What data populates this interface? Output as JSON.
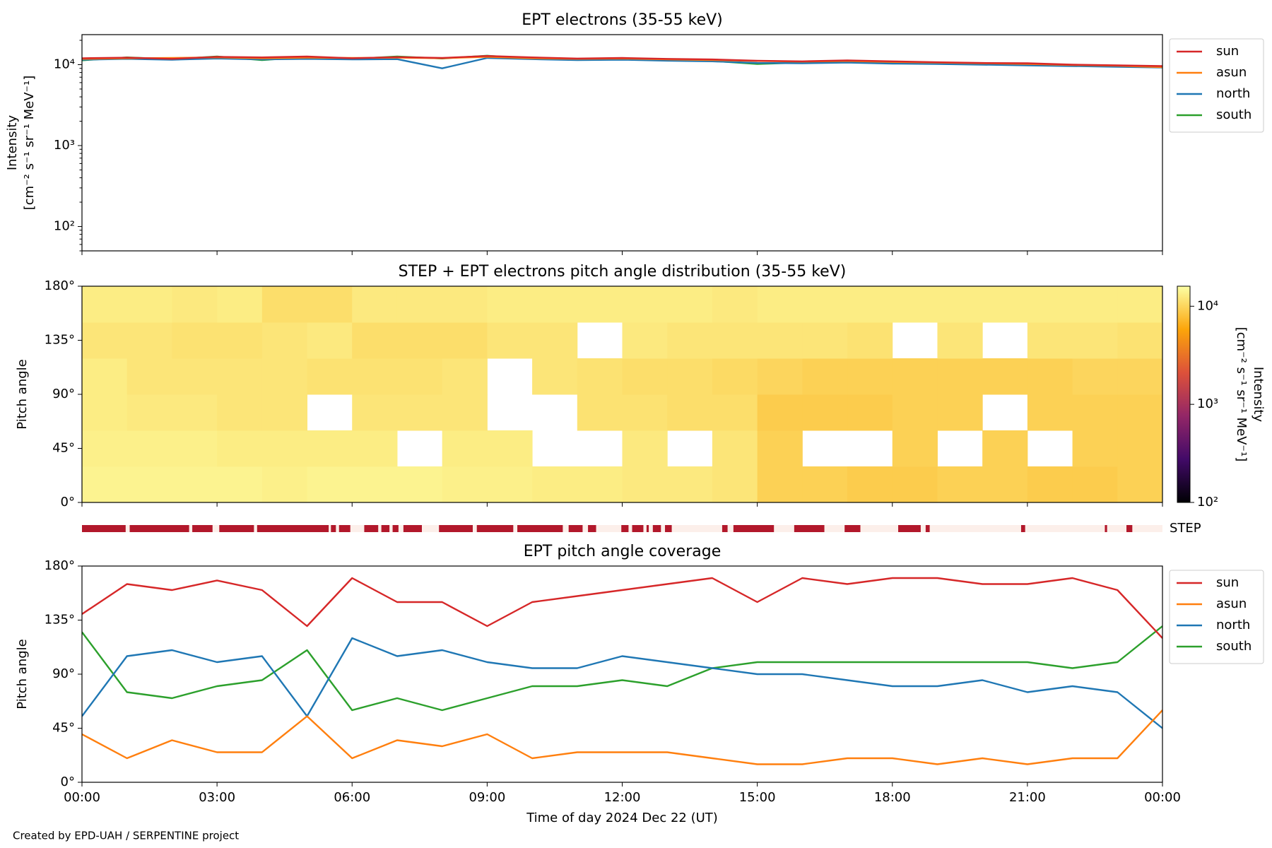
{
  "chart_data": [
    {
      "type": "line",
      "title": "EPT electrons (35-55 keV)",
      "ylabel": [
        "Intensity",
        "[cm⁻² s⁻¹ sr⁻¹ MeV⁻¹]"
      ],
      "log": true,
      "legend": "outside right",
      "x": [
        0,
        1,
        2,
        3,
        4,
        5,
        6,
        7,
        8,
        9,
        10,
        11,
        12,
        13,
        14,
        15,
        16,
        17,
        18,
        19,
        20,
        21,
        22,
        23,
        24
      ],
      "xlim": [
        0,
        24
      ],
      "xticks": [
        0,
        3,
        6,
        9,
        12,
        15,
        18,
        21,
        24
      ],
      "ylim": [
        50,
        23500
      ],
      "yticks": [
        {
          "value": 100,
          "label": "10²"
        },
        {
          "value": 1000,
          "label": "10³"
        },
        {
          "value": 10000,
          "label": "10⁴"
        }
      ],
      "series": [
        {
          "name": "sun",
          "color": "#d62728",
          "values": [
            12000,
            12200,
            11800,
            12500,
            12300,
            12600,
            12000,
            12400,
            12100,
            12800,
            12300,
            11900,
            12100,
            11800,
            11600,
            11200,
            11000,
            11300,
            11000,
            10700,
            10500,
            10400,
            10000,
            9800,
            9600
          ]
        },
        {
          "name": "asun",
          "color": "#ff7f0e",
          "values": [
            11800,
            12000,
            12100,
            12300,
            12000,
            12200,
            12100,
            12200,
            12000,
            12500,
            12000,
            11800,
            11900,
            11600,
            11400,
            11100,
            10900,
            11100,
            10800,
            10600,
            10400,
            10200,
            9900,
            9700,
            9300
          ]
        },
        {
          "name": "north",
          "color": "#1f77b4",
          "values": [
            11500,
            11800,
            11500,
            11900,
            11600,
            11800,
            11600,
            11700,
            9000,
            12100,
            11700,
            11400,
            11500,
            11200,
            11000,
            10500,
            10400,
            10600,
            10300,
            10200,
            10000,
            9800,
            9600,
            9400,
            9200
          ]
        },
        {
          "name": "south",
          "color": "#2ca02c",
          "values": [
            11300,
            12300,
            11700,
            12600,
            11400,
            12400,
            11800,
            12600,
            11900,
            12900,
            11800,
            11600,
            11700,
            11300,
            11100,
            10200,
            10600,
            10900,
            10500,
            10300,
            10100,
            10000,
            9700,
            9500,
            9400
          ]
        }
      ]
    },
    {
      "type": "heatmap",
      "title": "STEP + EPT electrons pitch angle distribution (35-55 keV)",
      "ylabel": "Pitch angle",
      "xbins": [
        0,
        1,
        2,
        3,
        4,
        5,
        6,
        7,
        8,
        9,
        10,
        11,
        12,
        13,
        14,
        15,
        16,
        17,
        18,
        19,
        20,
        21,
        22,
        23,
        24
      ],
      "ybins": [
        0,
        30,
        60,
        90,
        120,
        150,
        180
      ],
      "xlim": [
        0,
        24
      ],
      "xticks": [
        0,
        3,
        6,
        9,
        12,
        15,
        18,
        21,
        24
      ],
      "ylim": [
        0,
        180
      ],
      "yticks": [
        {
          "value": 0,
          "label": "0°"
        },
        {
          "value": 45,
          "label": "45°"
        },
        {
          "value": 90,
          "label": "90°"
        },
        {
          "value": 135,
          "label": "135°"
        },
        {
          "value": 180,
          "label": "180°"
        }
      ],
      "z": [
        [
          14000,
          14000,
          14000,
          14000,
          13500,
          14000,
          14000,
          14000,
          13500,
          13500,
          13000,
          13000,
          12500,
          12500,
          12000,
          9500,
          9500,
          9000,
          9000,
          9500,
          9500,
          9000,
          9000,
          9500
        ],
        [
          13500,
          13500,
          13500,
          13000,
          13000,
          13000,
          13000,
          null,
          13000,
          13000,
          null,
          null,
          12500,
          null,
          12000,
          9500,
          null,
          null,
          9500,
          null,
          9500,
          null,
          9500,
          9500
        ],
        [
          13000,
          12500,
          12500,
          12000,
          12000,
          null,
          12000,
          12000,
          12000,
          null,
          null,
          11500,
          11500,
          11000,
          11000,
          9000,
          9000,
          9000,
          9500,
          9500,
          null,
          9500,
          9500,
          9500
        ],
        [
          13000,
          12000,
          12000,
          12000,
          12000,
          11500,
          11500,
          11500,
          12000,
          null,
          12000,
          11500,
          11000,
          11000,
          10500,
          10000,
          9500,
          9500,
          9500,
          9500,
          9500,
          9500,
          10000,
          10000
        ],
        [
          12000,
          12000,
          11500,
          11500,
          12000,
          12500,
          11000,
          11000,
          11000,
          12000,
          12000,
          null,
          12500,
          12000,
          12000,
          12000,
          12000,
          11500,
          null,
          12000,
          null,
          12000,
          12000,
          11500
        ],
        [
          13000,
          13000,
          12500,
          13000,
          11000,
          11000,
          12500,
          12500,
          12500,
          13000,
          13000,
          13000,
          13000,
          13000,
          12500,
          13000,
          13000,
          13000,
          13000,
          13000,
          13000,
          13000,
          13000,
          13000
        ]
      ],
      "clim": [
        100,
        16000
      ],
      "clog": true,
      "colormap": [
        "#000004",
        "#420a68",
        "#932667",
        "#dd513a",
        "#fca50a",
        "#fcffa4"
      ],
      "cticks": [
        {
          "value": 100,
          "label": "10²"
        },
        {
          "value": 1000,
          "label": "10³"
        },
        {
          "value": 10000,
          "label": "10⁴"
        }
      ],
      "clabel": [
        "Intensity",
        "[cm⁻² s⁻¹ sr⁻¹ MeV⁻¹]"
      ],
      "step": {
        "label": "STEP",
        "color": "#b2182b",
        "background": "#fcefea",
        "intervals": [
          [
            0,
            0.97
          ],
          [
            1.06,
            2.38
          ],
          [
            2.45,
            2.9
          ],
          [
            3.05,
            3.82
          ],
          [
            3.89,
            5.48
          ],
          [
            5.53,
            5.64
          ],
          [
            5.71,
            5.96
          ],
          [
            6.27,
            6.58
          ],
          [
            6.65,
            6.83
          ],
          [
            6.9,
            7.03
          ],
          [
            7.14,
            7.55
          ],
          [
            7.93,
            8.68
          ],
          [
            8.77,
            9.58
          ],
          [
            9.67,
            10.68
          ],
          [
            10.81,
            11.12
          ],
          [
            11.24,
            11.42
          ],
          [
            11.98,
            12.14
          ],
          [
            12.22,
            12.47
          ],
          [
            12.54,
            12.59
          ],
          [
            12.68,
            12.86
          ],
          [
            12.95,
            13.1
          ],
          [
            14.22,
            14.34
          ],
          [
            14.47,
            15.37
          ],
          [
            15.82,
            16.49
          ],
          [
            16.94,
            17.29
          ],
          [
            18.13,
            18.63
          ],
          [
            18.74,
            18.83
          ],
          [
            20.86,
            20.95
          ],
          [
            22.72,
            22.77
          ],
          [
            23.2,
            23.33
          ]
        ]
      }
    },
    {
      "type": "line",
      "title": "EPT pitch angle coverage",
      "ylabel": "Pitch angle",
      "xlabel": "Time of day 2024 Dec 22 (UT)",
      "legend": "outside right",
      "x": [
        0,
        1,
        2,
        3,
        4,
        5,
        6,
        7,
        8,
        9,
        10,
        11,
        12,
        13,
        14,
        15,
        16,
        17,
        18,
        19,
        20,
        21,
        22,
        23,
        24
      ],
      "xlim": [
        0,
        24
      ],
      "xticks": [
        {
          "value": 0,
          "label": "00:00"
        },
        {
          "value": 3,
          "label": "03:00"
        },
        {
          "value": 6,
          "label": "06:00"
        },
        {
          "value": 9,
          "label": "09:00"
        },
        {
          "value": 12,
          "label": "12:00"
        },
        {
          "value": 15,
          "label": "15:00"
        },
        {
          "value": 18,
          "label": "18:00"
        },
        {
          "value": 21,
          "label": "21:00"
        },
        {
          "value": 24,
          "label": "00:00"
        }
      ],
      "ylim": [
        0,
        180
      ],
      "yticks": [
        {
          "value": 0,
          "label": "0°"
        },
        {
          "value": 45,
          "label": "45°"
        },
        {
          "value": 90,
          "label": "90°"
        },
        {
          "value": 135,
          "label": "135°"
        },
        {
          "value": 180,
          "label": "180°"
        }
      ],
      "series": [
        {
          "name": "sun",
          "color": "#d62728",
          "values": [
            140,
            165,
            160,
            168,
            160,
            130,
            170,
            150,
            150,
            130,
            150,
            155,
            160,
            165,
            170,
            150,
            170,
            165,
            170,
            170,
            165,
            165,
            170,
            160,
            120
          ]
        },
        {
          "name": "asun",
          "color": "#ff7f0e",
          "values": [
            40,
            20,
            35,
            25,
            25,
            55,
            20,
            35,
            30,
            40,
            20,
            25,
            25,
            25,
            20,
            15,
            15,
            20,
            20,
            15,
            20,
            15,
            20,
            20,
            60
          ]
        },
        {
          "name": "north",
          "color": "#1f77b4",
          "values": [
            55,
            105,
            110,
            100,
            105,
            55,
            120,
            105,
            110,
            100,
            95,
            95,
            105,
            100,
            95,
            90,
            90,
            85,
            80,
            80,
            85,
            75,
            80,
            75,
            45
          ]
        },
        {
          "name": "south",
          "color": "#2ca02c",
          "values": [
            125,
            75,
            70,
            80,
            85,
            110,
            60,
            70,
            60,
            70,
            80,
            80,
            85,
            80,
            95,
            100,
            100,
            100,
            100,
            100,
            100,
            100,
            95,
            100,
            130
          ]
        }
      ]
    }
  ],
  "footer": "Created by EPD-UAH / SERPENTINE project"
}
